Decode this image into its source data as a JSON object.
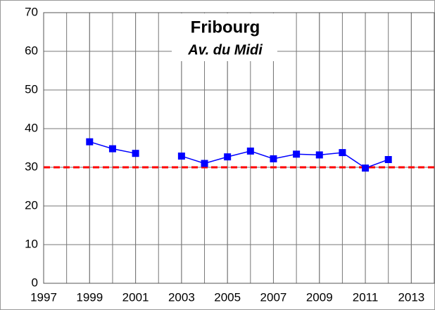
{
  "chart_data": {
    "type": "line",
    "title": "Fribourg",
    "subtitle": "Av. du Midi",
    "x": [
      1999,
      2000,
      2001,
      2002,
      2003,
      2004,
      2005,
      2006,
      2007,
      2008,
      2009,
      2010,
      2011,
      2012
    ],
    "values": [
      36.6,
      34.8,
      33.6,
      null,
      32.9,
      31.0,
      32.7,
      34.2,
      32.2,
      33.4,
      33.2,
      33.8,
      29.8,
      32.0
    ],
    "color": "#0000ff",
    "threshold": {
      "value": 30,
      "color": "#ff0000"
    },
    "xlim": [
      1997,
      2014
    ],
    "xticks": [
      1997,
      1999,
      2001,
      2003,
      2005,
      2007,
      2009,
      2011,
      2013
    ],
    "x_minor_step": 1,
    "ylim": [
      0,
      70
    ],
    "yticks": [
      0,
      10,
      20,
      30,
      40,
      50,
      60,
      70
    ],
    "grid": true
  }
}
